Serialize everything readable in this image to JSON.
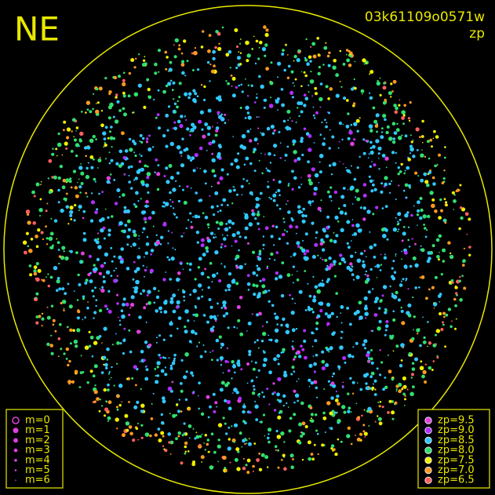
{
  "header": {
    "direction": "NE",
    "frame_id": "03k61109o0571w",
    "mode": "zp"
  },
  "legend_m": {
    "labels": [
      "m=0",
      "m=1",
      "m=2",
      "m=3",
      "m=4",
      "m=5",
      "m=6"
    ]
  },
  "legend_zp": {
    "labels": [
      "zp=9.5",
      "zp=9.0",
      "zp=8.5",
      "zp=8.0",
      "zp=7.5",
      "zp=7.0",
      "zp=6.5"
    ],
    "colors": [
      "#e040e0",
      "#b030ff",
      "#30c8ff",
      "#30e070",
      "#f0f000",
      "#ff9a20",
      "#ff6060"
    ]
  },
  "outline_color": "#e8e800"
}
